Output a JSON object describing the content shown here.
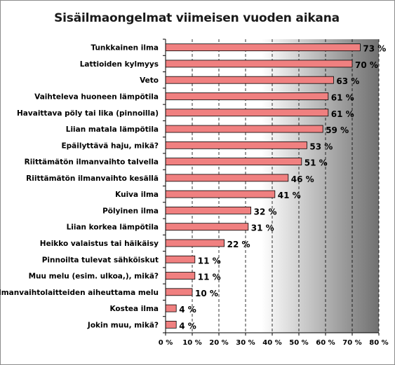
{
  "chart_data": {
    "type": "bar",
    "orientation": "horizontal",
    "title": "Sisäilmaongelmat viimeisen vuoden aikana",
    "categories": [
      "Tunkkainen ilma",
      "Lattioiden kylmyys",
      "Veto",
      "Vaihteleva huoneen lämpötila",
      "Havaittava pöly tai lika (pinnoilla)",
      "Liian matala lämpötila",
      "Epäilyttävä haju, mikä?",
      "Riittämätön ilmanvaihto talvella",
      "Riittämätön ilmanvaihto kesällä",
      "Kuiva ilma",
      "Pölyinen ilma",
      "Liian korkea lämpötila",
      "Heikko valaistus tai häikäisy",
      "Pinnoilta tulevat sähköiskut",
      "Muu melu (esim. ulkoa,), mikä?",
      "Ilmanvaihtolaitteiden aiheuttama melu",
      "Kostea ilma",
      "Jokin muu, mikä?"
    ],
    "values": [
      73,
      70,
      63,
      61,
      61,
      59,
      53,
      51,
      46,
      41,
      32,
      31,
      22,
      11,
      11,
      10,
      4,
      4
    ],
    "value_labels": [
      "73 %",
      "70 %",
      "63 %",
      "61 %",
      "61 %",
      "59 %",
      "53 %",
      "51 %",
      "46 %",
      "41 %",
      "32 %",
      "31 %",
      "22 %",
      "11 %",
      "11 %",
      "10 %",
      "4 %",
      "4 %"
    ],
    "xlim": [
      0,
      80
    ],
    "xticks": [
      0,
      10,
      20,
      30,
      40,
      50,
      60,
      70,
      80
    ],
    "xtick_labels": [
      "0 %",
      "10 %",
      "20 %",
      "30 %",
      "40 %",
      "50 %",
      "60 %",
      "70 %",
      "80 %"
    ],
    "grid": "vertical-dashed",
    "legend": "none",
    "bar_color": "#f08080",
    "bar_edge_color": "#000000",
    "plot_background": "gradient white to dark gray (left to right)"
  },
  "colors": {
    "bar_fill": "#f08080",
    "bar_edge": "#000000",
    "gradient_start": "#ffffff",
    "gradient_end": "#707070",
    "grid": "#000000"
  }
}
